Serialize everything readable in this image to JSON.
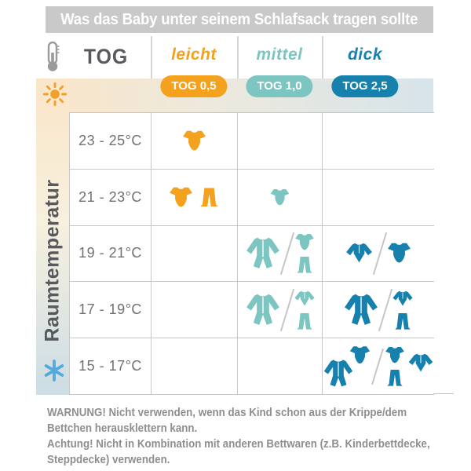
{
  "title": "Was das Baby unter seinem Schlafsack tragen sollte",
  "header": {
    "corner_label": "TOG"
  },
  "columns": [
    {
      "label": "leicht",
      "badge": "TOG 0,5",
      "color_key": "orange"
    },
    {
      "label": "mittel",
      "badge": "TOG 1,0",
      "color_key": "teal"
    },
    {
      "label": "dick",
      "badge": "TOG 2,5",
      "color_key": "blue"
    }
  ],
  "side_label": "Raumtemperatur",
  "rows": [
    {
      "temp": "23 - 25°C",
      "cells": [
        [
          {
            "layout": "row",
            "items": [
              "bodysuit"
            ]
          }
        ],
        [],
        []
      ]
    },
    {
      "temp": "21 - 23°C",
      "cells": [
        [
          {
            "layout": "row",
            "items": [
              "bodysuit",
              "pants"
            ]
          }
        ],
        [
          {
            "layout": "row",
            "items": [
              "bodysuit-sm"
            ]
          }
        ],
        []
      ]
    },
    {
      "temp": "19 - 21°C",
      "cells": [
        [],
        [
          {
            "layout": "row",
            "items": [
              "sleepsuit"
            ]
          },
          {
            "layout": "stack",
            "items": [
              "bodysuit",
              "pants"
            ]
          }
        ],
        [
          {
            "layout": "row",
            "items": [
              "wrapshirt"
            ]
          },
          {
            "layout": "row",
            "items": [
              "bodysuit"
            ]
          }
        ]
      ]
    },
    {
      "temp": "17 - 19°C",
      "cells": [
        [],
        [
          {
            "layout": "row",
            "items": [
              "sleepsuit"
            ]
          },
          {
            "layout": "stack",
            "items": [
              "wrapshirt",
              "pants"
            ]
          }
        ],
        [
          {
            "layout": "row",
            "items": [
              "sleepsuit"
            ]
          },
          {
            "layout": "stack",
            "items": [
              "wrapshirt",
              "pants"
            ]
          }
        ]
      ]
    },
    {
      "temp": "15 - 17°C",
      "cells": [
        [],
        [],
        [
          {
            "layout": "overlap",
            "items": [
              "sleepsuit",
              "bodysuit-sm"
            ]
          },
          {
            "layout": "stack-side",
            "items": [
              "bodysuit-sm",
              "pants",
              "wrapshirt"
            ]
          }
        ]
      ]
    }
  ],
  "footer": {
    "lines": [
      "WARNUNG! Nicht verwenden, wenn das Kind schon aus der Krippe/dem",
      "Bettchen herausklettern kann.",
      "Achtung! Nicht in Kombination mit anderen Bettwaren (z.B. Kinderbettdecke,",
      "Steppdecke) verwenden."
    ]
  },
  "icons": {
    "thermometer": "thermometer-icon",
    "sun": "sun-icon",
    "snowflake": "snowflake-icon",
    "bodysuit": "short-sleeve baby bodysuit",
    "bodysuit-sm": "small short-sleeve baby bodysuit",
    "pants": "baby pants",
    "sleepsuit": "long-sleeve footed sleepsuit",
    "wrapshirt": "long-sleeve wrap shirt"
  },
  "colors": {
    "title-bg": "#c9c9c9",
    "orange": "#f4a11e",
    "teal": "#7cc5c1",
    "blue": "#1781ad",
    "band-warm": "#fae5c8",
    "band-cool": "#d7e4ea",
    "grid": "#c6c6c6",
    "text-dark": "#58595d",
    "text-gray": "#707070",
    "footer-gray": "#8e8e8e",
    "sun": "#f0a02c",
    "snowflake": "#51aadb",
    "thermometer": "#9b9b9b"
  }
}
